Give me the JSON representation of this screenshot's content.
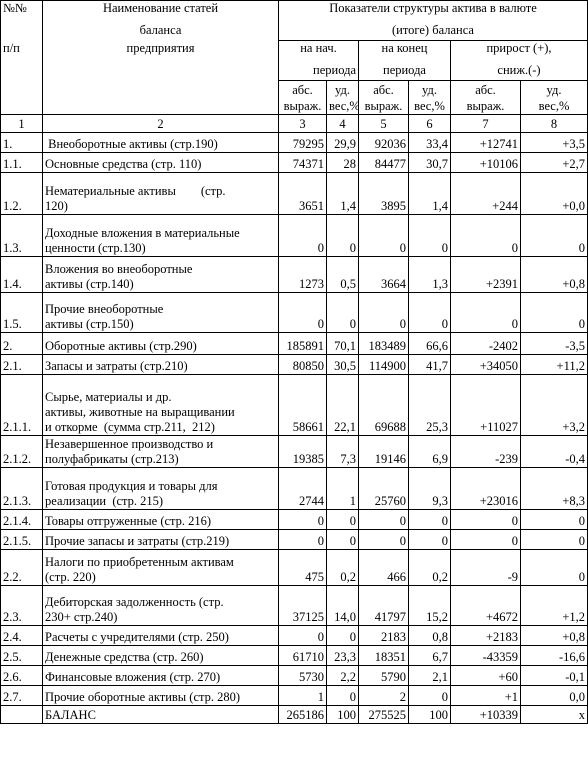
{
  "header": {
    "num_sign": "№№",
    "num_pp": "п/п",
    "name_line1": "Наименование статей",
    "name_line2": "баланса",
    "name_line3": "предприятия",
    "indicators_line1": "Показатели структуры актива в валюте",
    "indicators_line2": "(итоге) баланса",
    "begin_line1": "на нач.",
    "begin_line2": "периода",
    "end_line1": "на конец",
    "end_line2": "периода",
    "growth_line1": "прирост (+),",
    "growth_line2": "сниж.(-)",
    "abs_line1": "абс.",
    "abs_line2": "выраж.",
    "ud_line1": "уд.",
    "ud_line2": "вес,%"
  },
  "column_numbers": [
    "1",
    "2",
    "3",
    "4",
    "5",
    "6",
    "7",
    "8"
  ],
  "rows": [
    {
      "num": "1.",
      "lines": [
        " Внеоборотные активы (стр.190)"
      ],
      "v": [
        "79295",
        "29,9",
        "92036",
        "33,4",
        "+12741",
        "+3,5"
      ]
    },
    {
      "num": "1.1.",
      "lines": [
        "Основные средства (стр. 110)"
      ],
      "v": [
        "74371",
        "28",
        "84477",
        "30,7",
        "+10106",
        "+2,7"
      ]
    },
    {
      "num": "1.2.",
      "lines": [
        "Нематериальные активы        (стр.",
        "120)"
      ],
      "v": [
        "3651",
        "1,4",
        "3895",
        "1,4",
        "+244",
        "+0,0"
      ]
    },
    {
      "num": "1.3.",
      "lines": [
        "Доходные вложения в материальные",
        "ценности (стр.130)"
      ],
      "v": [
        "0",
        "0",
        "0",
        "0",
        "0",
        "0"
      ]
    },
    {
      "num": "1.4.",
      "lines": [
        "Вложения во внеоборотные",
        "активы (стр.140)"
      ],
      "v": [
        "1273",
        "0,5",
        "3664",
        "1,3",
        "+2391",
        "+0,8"
      ]
    },
    {
      "num": "1.5.",
      "lines": [
        "Прочие внеоборотные",
        "активы (стр.150)"
      ],
      "v": [
        "0",
        "0",
        "0",
        "0",
        "0",
        "0"
      ]
    },
    {
      "num": "2.",
      "lines": [
        "Оборотные активы (стр.290)"
      ],
      "v": [
        "185891",
        "70,1",
        "183489",
        "66,6",
        "-2402",
        "-3,5"
      ]
    },
    {
      "num": "2.1.",
      "lines": [
        "Запасы и затраты (стр.210)"
      ],
      "v": [
        "80850",
        "30,5",
        "114900",
        "41,7",
        "+34050",
        "+11,2"
      ]
    },
    {
      "num": "2.1.1.",
      "lines": [
        "Сырье, материалы и др.",
        "активы, животные на выращивании",
        "и откорме  (сумма стр.211,  212)"
      ],
      "v": [
        "58661",
        "22,1",
        "69688",
        "25,3",
        "+11027",
        "+3,2"
      ]
    },
    {
      "num": "2.1.2.",
      "lines": [
        "Незавершенное производство и",
        "полуфабрикаты (стр.213)"
      ],
      "v": [
        "19385",
        "7,3",
        "19146",
        "6,9",
        "-239",
        "-0,4"
      ]
    },
    {
      "num": "2.1.3.",
      "lines": [
        "Готовая продукция и товары для",
        "реализации  (стр. 215)"
      ],
      "v": [
        "2744",
        "1",
        "25760",
        "9,3",
        "+23016",
        "+8,3"
      ]
    },
    {
      "num": "2.1.4.",
      "lines": [
        "Товары отгруженные (стр. 216)"
      ],
      "v": [
        "0",
        "0",
        "0",
        "0",
        "0",
        "0"
      ]
    },
    {
      "num": "2.1.5.",
      "lines": [
        "Прочие запасы и затраты (стр.219)"
      ],
      "v": [
        "0",
        "0",
        "0",
        "0",
        "0",
        "0"
      ]
    },
    {
      "num": "2.2.",
      "lines": [
        "Налоги по приобретенным активам",
        "(стр. 220)"
      ],
      "v": [
        "475",
        "0,2",
        "466",
        "0,2",
        "-9",
        "0"
      ]
    },
    {
      "num": "2.3.",
      "lines": [
        "Дебиторская задолженность (стр.",
        "230+ стр.240)"
      ],
      "v": [
        "37125",
        "14,0",
        "41797",
        "15,2",
        "+4672",
        "+1,2"
      ]
    },
    {
      "num": "2.4.",
      "lines": [
        "Расчеты с учредителями (стр. 250)"
      ],
      "v": [
        "0",
        "0",
        "2183",
        "0,8",
        "+2183",
        "+0,8"
      ]
    },
    {
      "num": "2.5.",
      "lines": [
        "Денежные средства (стр. 260)"
      ],
      "v": [
        "61710",
        "23,3",
        "18351",
        "6,7",
        "-43359",
        "-16,6"
      ]
    },
    {
      "num": "2.6.",
      "lines": [
        "Финансовые вложения (стр. 270)"
      ],
      "v": [
        "5730",
        "2,2",
        "5790",
        "2,1",
        "+60",
        "-0,1"
      ]
    },
    {
      "num": "2.7.",
      "lines": [
        "Прочие оборотные активы (стр. 280)"
      ],
      "v": [
        "1",
        "0",
        "2",
        "0",
        "+1",
        "0,0"
      ]
    },
    {
      "num": "",
      "lines": [
        "БАЛАНС"
      ],
      "v": [
        "265186",
        "100",
        "275525",
        "100",
        "+10339",
        "х"
      ]
    }
  ]
}
